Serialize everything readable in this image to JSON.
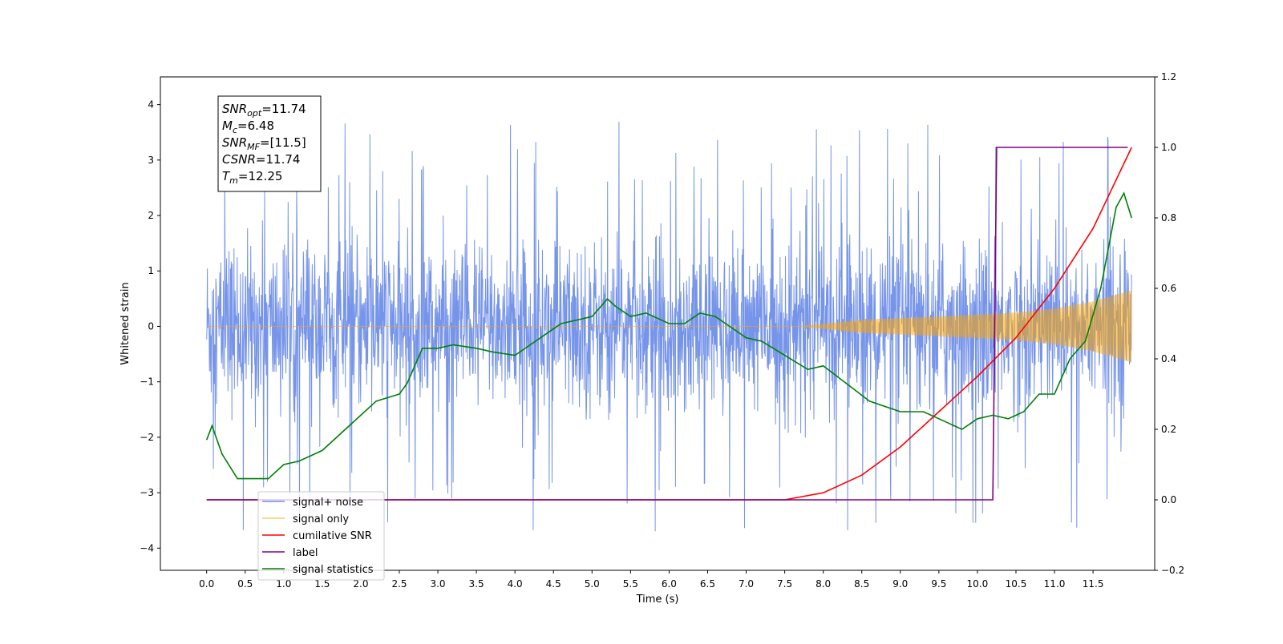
{
  "chart_data": {
    "type": "line",
    "title": "",
    "xlabel": "Time (s)",
    "ylabel": "Whitened strain",
    "ylabel_right": "",
    "xlim": [
      -0.6,
      12.3
    ],
    "ylim": [
      -4.4,
      4.5
    ],
    "ylim_right": [
      -0.2,
      1.2
    ],
    "x_ticks": [
      "0.0",
      "0.5",
      "1.0",
      "1.5",
      "2.0",
      "2.5",
      "3.0",
      "3.5",
      "4.0",
      "4.5",
      "5.0",
      "5.5",
      "6.0",
      "6.5",
      "7.0",
      "7.5",
      "8.0",
      "8.5",
      "9.0",
      "9.5",
      "10.0",
      "10.5",
      "11.0",
      "11.5"
    ],
    "y_ticks": [
      "−4",
      "−3",
      "−2",
      "−1",
      "0",
      "1",
      "2",
      "3",
      "4"
    ],
    "y_ticks_right": [
      "−0.2",
      "0.0",
      "0.2",
      "0.4",
      "0.6",
      "0.8",
      "1.0",
      "1.2"
    ],
    "grid": false,
    "legend_position": "lower-left",
    "annotation_lines": [
      {
        "main": "SNR",
        "sub": "opt",
        "rest": "=11.74"
      },
      {
        "main": "M",
        "sub": "c",
        "rest": "=6.48"
      },
      {
        "main": "SNR",
        "sub": "MF",
        "rest": "=[11.5]"
      },
      {
        "main": "CSNR",
        "sub": "",
        "rest": "=11.74"
      },
      {
        "main": "T",
        "sub": "m",
        "rest": "=12.25"
      }
    ],
    "series": [
      {
        "name": "signal+ noise",
        "axis": "left",
        "color": "#6f8ee8",
        "style": "noise band, approx. within ±1.5 with spikes to ±4",
        "x_range": [
          0.0,
          12.0
        ],
        "approx_range": [
          -4.0,
          4.1
        ]
      },
      {
        "name": "signal only",
        "axis": "left",
        "color": "#ffa500",
        "style": "chirp: amplitude ~0 until 7.7 s, growing to ±0.65 at 12.0 s",
        "x": [
          0.0,
          7.7,
          8.5,
          9.5,
          10.5,
          11.0,
          11.5,
          12.0
        ],
        "envelope": [
          0.0,
          0.0,
          0.12,
          0.18,
          0.25,
          0.32,
          0.45,
          0.65
        ]
      },
      {
        "name": "cumilative SNR",
        "axis": "right",
        "color": "#ff0000",
        "x": [
          0.0,
          7.5,
          8.0,
          8.5,
          9.0,
          9.5,
          10.0,
          10.5,
          11.0,
          11.5,
          12.0
        ],
        "y": [
          0.0,
          0.0,
          0.02,
          0.07,
          0.15,
          0.25,
          0.35,
          0.46,
          0.6,
          0.77,
          1.0
        ]
      },
      {
        "name": "label",
        "axis": "right",
        "color": "#800080",
        "x": [
          0.0,
          10.2,
          10.25,
          11.95
        ],
        "y": [
          0.0,
          0.0,
          1.0,
          1.0
        ]
      },
      {
        "name": "signal statistics",
        "axis": "right",
        "color": "#008000",
        "x": [
          0.0,
          0.07,
          0.2,
          0.4,
          0.6,
          0.8,
          1.0,
          1.2,
          1.5,
          1.8,
          2.0,
          2.2,
          2.5,
          2.6,
          2.8,
          3.0,
          3.2,
          3.5,
          3.7,
          4.0,
          4.2,
          4.4,
          4.6,
          4.8,
          5.0,
          5.2,
          5.3,
          5.5,
          5.7,
          6.0,
          6.2,
          6.4,
          6.6,
          6.8,
          7.0,
          7.2,
          7.5,
          7.8,
          8.0,
          8.3,
          8.6,
          9.0,
          9.3,
          9.6,
          9.8,
          10.0,
          10.2,
          10.4,
          10.6,
          10.8,
          11.0,
          11.2,
          11.4,
          11.6,
          11.8,
          11.9,
          12.0
        ],
        "y": [
          0.17,
          0.21,
          0.13,
          0.06,
          0.06,
          0.06,
          0.1,
          0.11,
          0.14,
          0.2,
          0.24,
          0.28,
          0.3,
          0.33,
          0.43,
          0.43,
          0.44,
          0.43,
          0.42,
          0.41,
          0.44,
          0.47,
          0.5,
          0.51,
          0.52,
          0.57,
          0.55,
          0.52,
          0.53,
          0.5,
          0.5,
          0.53,
          0.52,
          0.49,
          0.46,
          0.45,
          0.41,
          0.37,
          0.38,
          0.33,
          0.28,
          0.25,
          0.25,
          0.22,
          0.2,
          0.23,
          0.24,
          0.23,
          0.25,
          0.3,
          0.3,
          0.4,
          0.45,
          0.6,
          0.83,
          0.87,
          0.8
        ]
      }
    ]
  }
}
